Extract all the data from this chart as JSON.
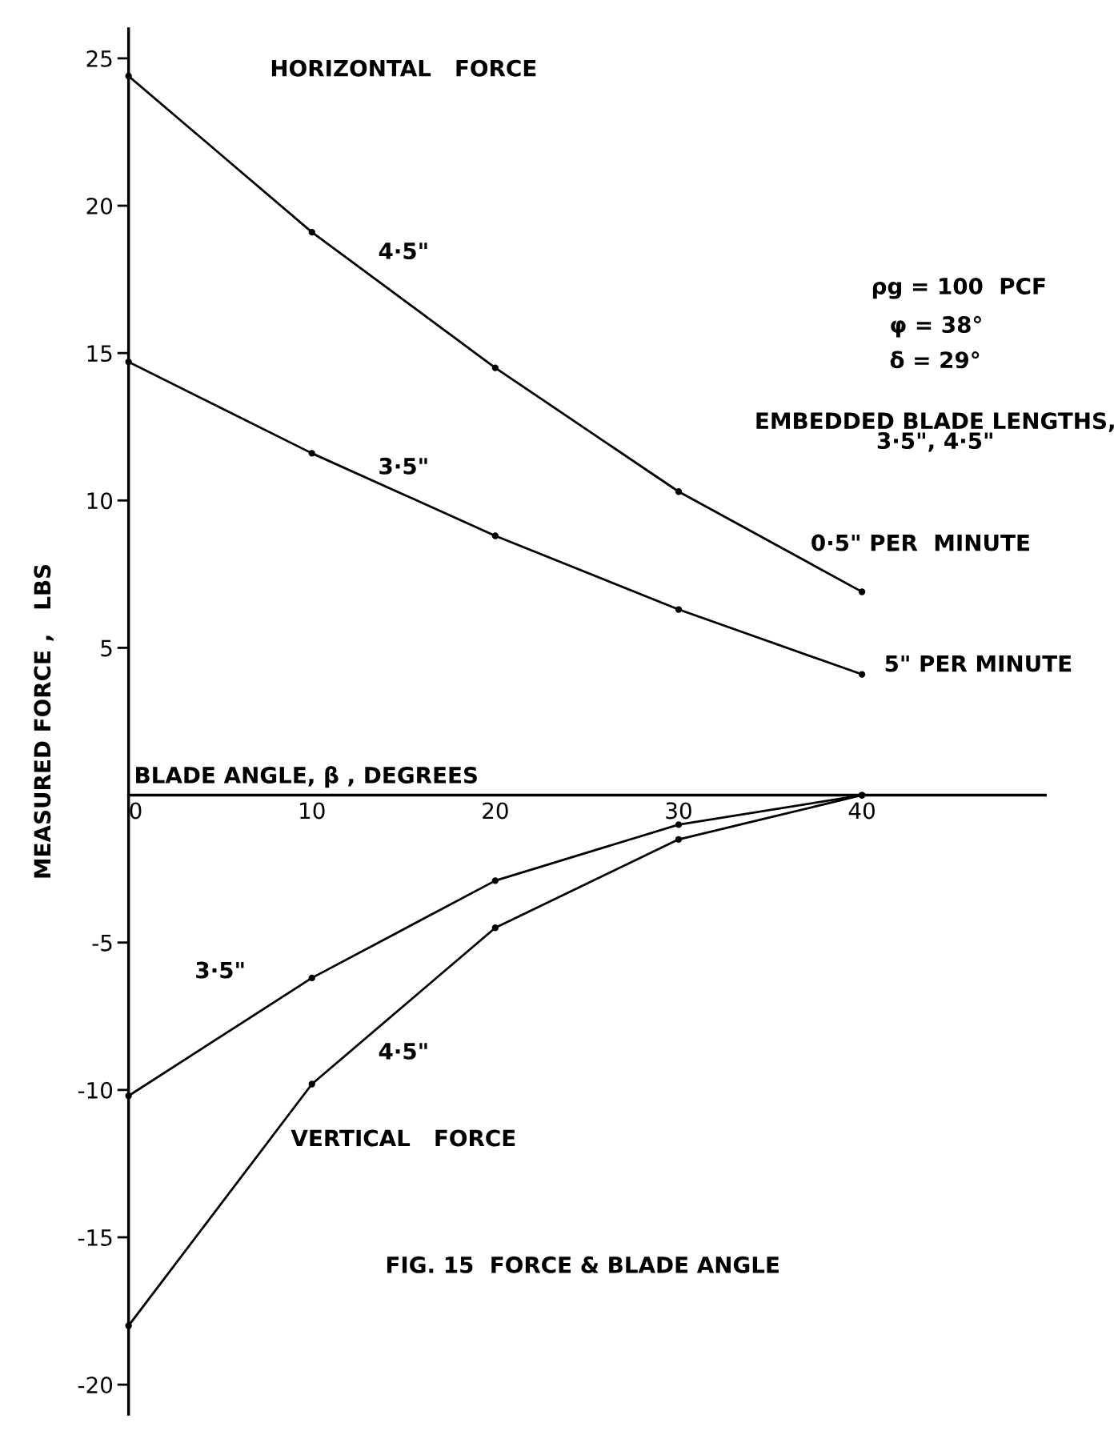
{
  "chart_data": {
    "type": "line",
    "xlabel": "BLADE ANGLE, β , DEGREES",
    "ylabel": "MEASURED FORCE ,   LBS",
    "x": [
      0,
      10,
      20,
      30,
      40
    ],
    "xlim": [
      0,
      50
    ],
    "xticks": [
      0,
      10,
      20,
      30,
      40
    ],
    "ylim": [
      -21,
      26
    ],
    "yticks": [
      -20,
      -15,
      -10,
      -5,
      5,
      10,
      15,
      20,
      25
    ],
    "marker": "circle",
    "line_style": "solid",
    "grid": false,
    "legend": false,
    "series": [
      {
        "name": "4·5\"",
        "color": "#000000",
        "values": [
          24.4,
          19.1,
          14.5,
          10.3,
          6.9
        ]
      },
      {
        "name": "3·5\"",
        "color": "#000000",
        "values": [
          14.7,
          11.6,
          8.8,
          6.3,
          4.1
        ]
      },
      {
        "name": "3·5\"",
        "color": "#000000",
        "values": [
          -10.2,
          -6.2,
          -2.9,
          -1.0,
          0
        ]
      },
      {
        "name": "4·5\"",
        "color": "#000000",
        "values": [
          -18.0,
          -9.8,
          -4.5,
          -1.5,
          0
        ]
      }
    ],
    "annotations": [
      "HORIZONTAL   FORCE",
      "VERTICAL   FORCE",
      "ρg = 100  PCF",
      "φ = 38°",
      "δ = 29°",
      "EMBEDDED BLADE LENGTHS,\n3·5\", 4·5\"",
      "0·5\" PER  MINUTE",
      "5\" PER MINUTE",
      "FIG. 15  FORCE & BLADE ANGLE"
    ]
  }
}
